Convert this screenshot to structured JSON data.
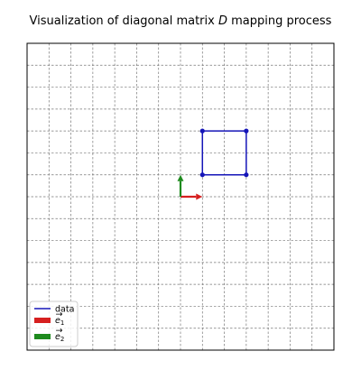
{
  "chart_data": {
    "type": "line",
    "title_parts": {
      "before": "Visualization of diagonal matrix ",
      "symbol": "D",
      "after": " mapping process"
    },
    "xlim": [
      -7,
      7
    ],
    "ylim": [
      -7,
      7
    ],
    "grid": true,
    "grid_style": "dashed",
    "axis_ticks_visible": false,
    "legend_position": "lower-left",
    "series": [
      {
        "name": "data",
        "color": "#1515b8",
        "points": [
          [
            1,
            1
          ],
          [
            3,
            1
          ],
          [
            3,
            3
          ],
          [
            1,
            3
          ],
          [
            1,
            1
          ]
        ]
      }
    ],
    "basis_vectors": [
      {
        "name": "e1",
        "label_symbol": "e",
        "label_subscript": "1",
        "color": "#d62020",
        "x": 1,
        "y": 0
      },
      {
        "name": "e2",
        "label_symbol": "e",
        "label_subscript": "2",
        "color": "#1e8a1e",
        "x": 0,
        "y": 1
      }
    ]
  }
}
